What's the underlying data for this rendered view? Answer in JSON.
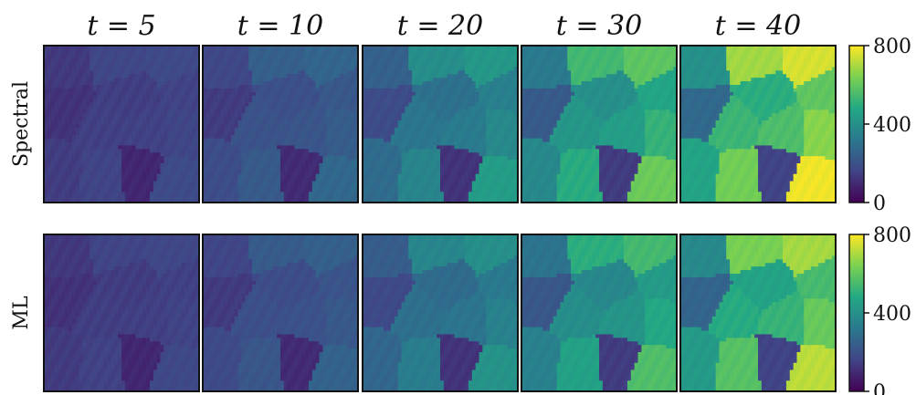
{
  "chart_data": {
    "type": "heatmap",
    "title": "",
    "columns": [
      {
        "label": "t = 5",
        "t": 5
      },
      {
        "label": "t = 10",
        "t": 10
      },
      {
        "label": "t = 20",
        "t": 20
      },
      {
        "label": "t = 30",
        "t": 30
      },
      {
        "label": "t = 40",
        "t": 40
      }
    ],
    "rows": [
      "Spectral",
      "ML"
    ],
    "colorbar": {
      "min": 0,
      "max": 800,
      "ticks": [
        0,
        400,
        800
      ],
      "colormap": "viridis"
    },
    "colormap_stops": [
      "#440154",
      "#414487",
      "#2a788e",
      "#22a884",
      "#7ad151",
      "#fde725"
    ],
    "grains": [
      {
        "x": 0.12,
        "y": 0.12,
        "base": 0.4
      },
      {
        "x": 0.48,
        "y": 0.08,
        "base": 0.85
      },
      {
        "x": 0.84,
        "y": 0.1,
        "base": 0.95
      },
      {
        "x": 0.93,
        "y": 0.28,
        "base": 0.7
      },
      {
        "x": 0.55,
        "y": 0.32,
        "base": 0.55
      },
      {
        "x": 0.15,
        "y": 0.42,
        "base": 0.2
      },
      {
        "x": 0.34,
        "y": 0.52,
        "base": 0.6
      },
      {
        "x": 0.68,
        "y": 0.55,
        "base": 0.65
      },
      {
        "x": 0.9,
        "y": 0.55,
        "base": 0.8
      },
      {
        "x": 0.1,
        "y": 0.78,
        "base": 0.5
      },
      {
        "x": 0.38,
        "y": 0.8,
        "base": 0.75
      },
      {
        "x": 0.85,
        "y": 0.86,
        "base": 1.0
      },
      {
        "x": 0.62,
        "y": 0.78,
        "base": 0.02
      }
    ]
  }
}
